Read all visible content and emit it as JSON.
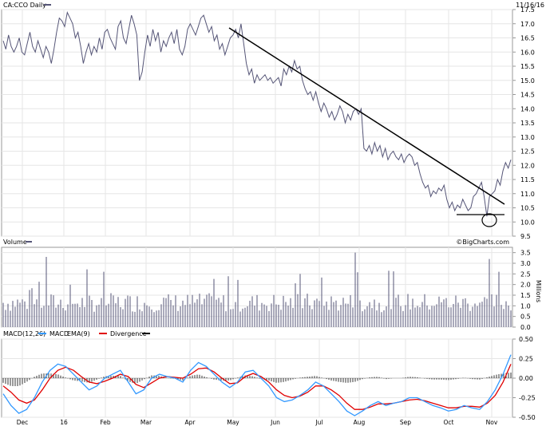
{
  "chart_data": [
    {
      "type": "line",
      "panel": "price",
      "title": "CA:CCO Daily",
      "date_label": "11/16/16",
      "watermark": "©BigCharts.com",
      "ylim": [
        9.5,
        17.5
      ],
      "yticks": [
        "17.5",
        "17.0",
        "16.5",
        "16.0",
        "15.5",
        "15.0",
        "14.5",
        "14.0",
        "13.5",
        "13.0",
        "12.5",
        "12.0",
        "11.5",
        "11.0",
        "10.5",
        "10.0",
        "9.5"
      ],
      "ytick_values": [
        17.5,
        17.0,
        16.5,
        16.0,
        15.5,
        15.0,
        14.5,
        14.0,
        13.5,
        13.0,
        12.5,
        12.0,
        11.5,
        11.0,
        10.5,
        10.0,
        9.5
      ],
      "months": [
        "Dec",
        "16",
        "Feb",
        "Mar",
        "Apr",
        "May",
        "Jun",
        "Jul",
        "Aug",
        "Sep",
        "Oct",
        "Nov"
      ],
      "series": [
        {
          "values": [
            16.4,
            16.1,
            16.6,
            16.2,
            16.0,
            16.2,
            16.5,
            16.0,
            15.9,
            16.3,
            16.7,
            16.2,
            16.0,
            16.4,
            16.1,
            15.8,
            16.2,
            16.0,
            15.6,
            16.1,
            16.7,
            17.2,
            17.1,
            16.9,
            17.4,
            17.2,
            17.0,
            16.5,
            16.7,
            16.2,
            15.6,
            16.0,
            16.3,
            15.9,
            16.2,
            16.0,
            16.5,
            16.1,
            16.7,
            16.8,
            16.5,
            16.3,
            16.1,
            16.9,
            17.1,
            16.5,
            16.3,
            16.8,
            17.3,
            17.0,
            16.6,
            15.0,
            15.3,
            16.0,
            16.6,
            16.2,
            16.8,
            16.4,
            16.7,
            16.0,
            16.4,
            16.2,
            16.5,
            16.7,
            16.3,
            16.8,
            16.1,
            15.9,
            16.2,
            16.8,
            17.0,
            16.8,
            16.6,
            16.9,
            17.2,
            17.3,
            17.0,
            16.7,
            16.9,
            16.4,
            16.6,
            16.1,
            16.3,
            15.9,
            16.2,
            16.5,
            16.6,
            16.8,
            16.5,
            17.0,
            16.3,
            15.6,
            15.2,
            15.4,
            14.9,
            15.2,
            15.0,
            15.1,
            15.2,
            15.0,
            15.1,
            14.9,
            15.0,
            15.1,
            14.8,
            15.4,
            15.2,
            15.5,
            15.3,
            15.7,
            15.4,
            15.5,
            15.0,
            14.7,
            14.5,
            14.6,
            14.3,
            14.6,
            14.2,
            13.9,
            14.2,
            14.0,
            13.7,
            13.9,
            13.6,
            13.8,
            14.1,
            13.9,
            13.5,
            13.8,
            13.6,
            13.9,
            14.0,
            13.8,
            14.0,
            12.6,
            12.5,
            12.7,
            12.4,
            12.8,
            12.5,
            12.7,
            12.3,
            12.6,
            12.2,
            12.4,
            12.5,
            12.3,
            12.2,
            12.4,
            12.1,
            12.3,
            12.4,
            12.3,
            12.0,
            12.1,
            11.7,
            11.4,
            11.2,
            11.3,
            10.9,
            11.1,
            11.0,
            11.2,
            11.1,
            11.3,
            10.8,
            10.5,
            10.7,
            10.4,
            10.6,
            10.5,
            10.8,
            10.6,
            10.4,
            10.5,
            10.9,
            11.0,
            11.2,
            11.4,
            10.9,
            10.2,
            10.9,
            11.0,
            11.1,
            11.5,
            11.3,
            11.8,
            12.1,
            11.9,
            12.2
          ]
        }
      ],
      "annotations": [
        "trendline",
        "support-line",
        "circle-marker"
      ]
    },
    {
      "type": "bar",
      "panel": "volume",
      "title": "Volume",
      "ylim": [
        0,
        3.75
      ],
      "ylabel": "Millions",
      "yticks": [
        "3.5",
        "3.0",
        "2.5",
        "2.0",
        "1.5",
        "1.0",
        "0.5",
        "0.0"
      ],
      "ytick_values": [
        3.5,
        3.0,
        2.5,
        2.0,
        1.5,
        1.0,
        0.5,
        0.0
      ],
      "spikes": [
        {
          "x": 57,
          "value": 3.3
        },
        {
          "x": 130,
          "value": 2.6
        },
        {
          "x": 375,
          "value": 2.5
        },
        {
          "x": 445,
          "value": 3.5
        },
        {
          "x": 612,
          "value": 3.2
        },
        {
          "x": 625,
          "value": 2.6
        }
      ]
    },
    {
      "type": "line",
      "panel": "macd",
      "title": "MACD(12,26)",
      "legend": [
        "MACD",
        "EMA(9)",
        "Divergence"
      ],
      "legend_colors": [
        "#3399ff",
        "#e00000",
        "#000000"
      ],
      "ylim": [
        -0.5,
        0.5
      ],
      "yticks": [
        "0.50",
        "0.25",
        "0.00",
        "-0.25",
        "-0.50"
      ],
      "ytick_values": [
        0.5,
        0.25,
        0.0,
        -0.25,
        -0.5
      ],
      "series": [
        {
          "name": "MACD",
          "values": [
            -0.2,
            -0.35,
            -0.45,
            -0.4,
            -0.25,
            -0.05,
            0.1,
            0.18,
            0.15,
            0.05,
            -0.05,
            -0.15,
            -0.1,
            0.0,
            0.05,
            0.1,
            -0.05,
            -0.2,
            -0.15,
            0.0,
            0.05,
            0.02,
            0.0,
            -0.05,
            0.1,
            0.2,
            0.15,
            0.05,
            -0.05,
            -0.12,
            -0.05,
            0.08,
            0.1,
            0.0,
            -0.1,
            -0.25,
            -0.3,
            -0.28,
            -0.22,
            -0.15,
            -0.05,
            -0.1,
            -0.2,
            -0.3,
            -0.42,
            -0.48,
            -0.42,
            -0.35,
            -0.3,
            -0.35,
            -0.32,
            -0.3,
            -0.25,
            -0.25,
            -0.3,
            -0.35,
            -0.38,
            -0.42,
            -0.4,
            -0.35,
            -0.38,
            -0.4,
            -0.3,
            -0.15,
            0.05,
            0.3
          ]
        },
        {
          "name": "EMA(9)",
          "values": [
            -0.1,
            -0.18,
            -0.28,
            -0.32,
            -0.28,
            -0.15,
            0.0,
            0.1,
            0.14,
            0.1,
            0.02,
            -0.05,
            -0.07,
            -0.04,
            0.0,
            0.05,
            0.02,
            -0.08,
            -0.12,
            -0.06,
            0.0,
            0.02,
            0.01,
            0.0,
            0.05,
            0.12,
            0.13,
            0.08,
            0.0,
            -0.07,
            -0.06,
            0.02,
            0.06,
            0.02,
            -0.05,
            -0.15,
            -0.22,
            -0.25,
            -0.23,
            -0.18,
            -0.1,
            -0.1,
            -0.15,
            -0.22,
            -0.32,
            -0.4,
            -0.4,
            -0.37,
            -0.33,
            -0.33,
            -0.32,
            -0.3,
            -0.28,
            -0.27,
            -0.29,
            -0.32,
            -0.35,
            -0.38,
            -0.38,
            -0.36,
            -0.36,
            -0.37,
            -0.32,
            -0.22,
            -0.05,
            0.18
          ]
        }
      ]
    }
  ]
}
